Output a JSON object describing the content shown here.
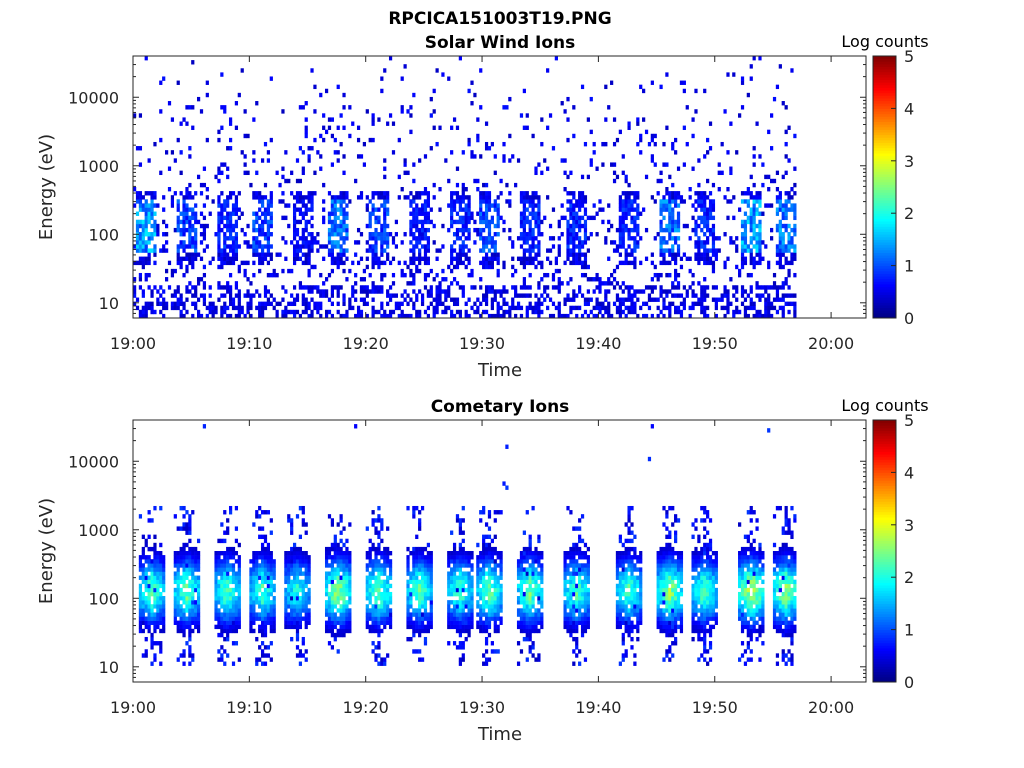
{
  "figure_title": "RPCICA151003T19.PNG",
  "chart_data": [
    {
      "type": "heatmap",
      "title": "Solar Wind Ions",
      "xlabel": "Time",
      "ylabel": "Energy (eV)",
      "xlim": [
        "19:00",
        "20:03"
      ],
      "x_ticks": [
        "19:00",
        "19:10",
        "19:20",
        "19:30",
        "19:40",
        "19:50",
        "20:00"
      ],
      "ylim": [
        6,
        40000
      ],
      "y_scale": "log",
      "y_ticks": [
        "10",
        "100",
        "1000",
        "10000"
      ],
      "data_end_time": "19:57",
      "colorbar": {
        "label": "Log counts",
        "range": [
          0,
          5
        ],
        "ticks": [
          "0",
          "1",
          "2",
          "3",
          "4",
          "5"
        ],
        "colormap": "jet"
      },
      "background_level_log_counts": 0.3,
      "sweep_peaks": [
        {
          "time_min": 1.0,
          "peak_log_counts": 1.8
        },
        {
          "time_min": 4.5,
          "peak_log_counts": 1.2
        },
        {
          "time_min": 8.0,
          "peak_log_counts": 1.0
        },
        {
          "time_min": 11.0,
          "peak_log_counts": 1.2
        },
        {
          "time_min": 14.5,
          "peak_log_counts": 0.8
        },
        {
          "time_min": 17.5,
          "peak_log_counts": 1.5
        },
        {
          "time_min": 21.0,
          "peak_log_counts": 1.2
        },
        {
          "time_min": 24.5,
          "peak_log_counts": 0.9
        },
        {
          "time_min": 28.0,
          "peak_log_counts": 1.0
        },
        {
          "time_min": 30.5,
          "peak_log_counts": 1.3
        },
        {
          "time_min": 34.0,
          "peak_log_counts": 1.0
        },
        {
          "time_min": 38.0,
          "peak_log_counts": 1.0
        },
        {
          "time_min": 42.5,
          "peak_log_counts": 1.0
        },
        {
          "time_min": 46.0,
          "peak_log_counts": 1.5
        },
        {
          "time_min": 49.0,
          "peak_log_counts": 1.0
        },
        {
          "time_min": 53.0,
          "peak_log_counts": 1.8
        },
        {
          "time_min": 56.0,
          "peak_log_counts": 1.6
        }
      ]
    },
    {
      "type": "heatmap",
      "title": "Cometary Ions",
      "xlabel": "Time",
      "ylabel": "Energy (eV)",
      "xlim": [
        "19:00",
        "20:03"
      ],
      "x_ticks": [
        "19:00",
        "19:10",
        "19:20",
        "19:30",
        "19:40",
        "19:50",
        "20:00"
      ],
      "ylim": [
        6,
        40000
      ],
      "y_scale": "log",
      "y_ticks": [
        "10",
        "100",
        "1000",
        "10000"
      ],
      "data_end_time": "19:57",
      "colorbar": {
        "label": "Log counts",
        "range": [
          0,
          5
        ],
        "ticks": [
          "0",
          "1",
          "2",
          "3",
          "4",
          "5"
        ],
        "colormap": "jet"
      },
      "peak_energy_eV": 120,
      "sweep_peaks": [
        {
          "time_min": 1.5,
          "peak_log_counts": 2.3
        },
        {
          "time_min": 4.5,
          "peak_log_counts": 2.4
        },
        {
          "time_min": 8.0,
          "peak_log_counts": 2.3
        },
        {
          "time_min": 11.0,
          "peak_log_counts": 2.2
        },
        {
          "time_min": 14.0,
          "peak_log_counts": 2.0
        },
        {
          "time_min": 17.5,
          "peak_log_counts": 2.6
        },
        {
          "time_min": 21.0,
          "peak_log_counts": 2.4
        },
        {
          "time_min": 24.5,
          "peak_log_counts": 2.3
        },
        {
          "time_min": 28.0,
          "peak_log_counts": 2.2
        },
        {
          "time_min": 30.5,
          "peak_log_counts": 2.4
        },
        {
          "time_min": 34.0,
          "peak_log_counts": 2.4
        },
        {
          "time_min": 38.0,
          "peak_log_counts": 2.3
        },
        {
          "time_min": 42.5,
          "peak_log_counts": 2.2
        },
        {
          "time_min": 46.0,
          "peak_log_counts": 2.6
        },
        {
          "time_min": 49.0,
          "peak_log_counts": 2.3
        },
        {
          "time_min": 53.0,
          "peak_log_counts": 2.8
        },
        {
          "time_min": 56.0,
          "peak_log_counts": 2.6
        }
      ]
    }
  ]
}
